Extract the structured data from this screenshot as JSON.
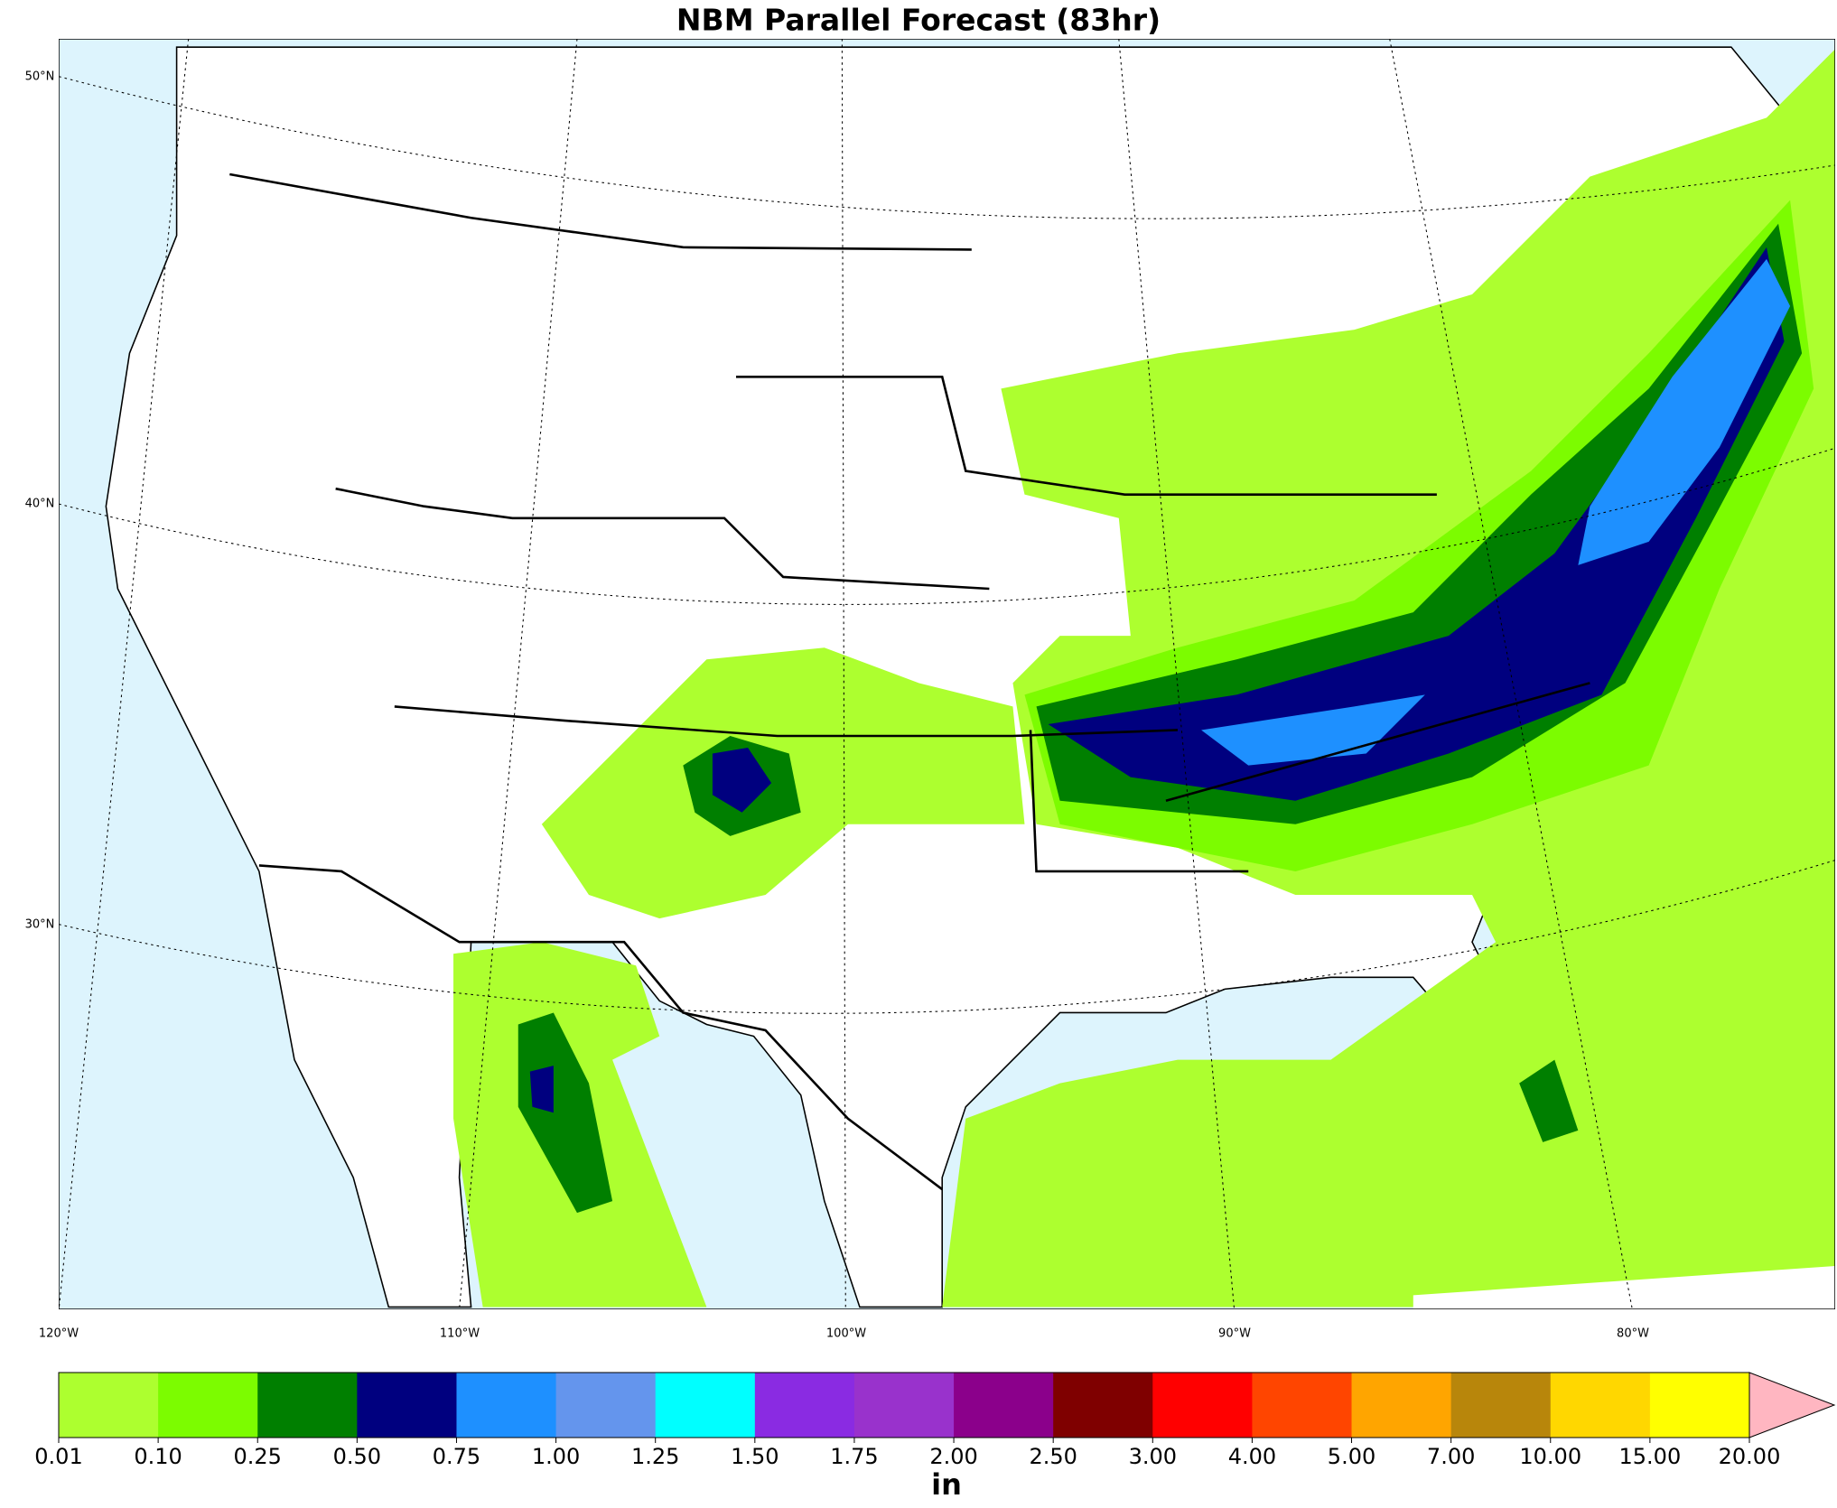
{
  "title": "NBM Parallel Forecast (83hr)",
  "map": {
    "lat_labels": [
      "50°N",
      "40°N",
      "30°N"
    ],
    "lon_labels": [
      "120°W",
      "110°W",
      "100°W",
      "90°W",
      "80°W"
    ]
  },
  "colorbar": {
    "unit": "in",
    "labels": [
      "0.01",
      "0.10",
      "0.25",
      "0.50",
      "0.75",
      "1.00",
      "1.25",
      "1.50",
      "1.75",
      "2.00",
      "2.50",
      "3.00",
      "4.00",
      "5.00",
      "7.00",
      "10.00",
      "15.00",
      "20.00"
    ],
    "colors": [
      "#adff2f",
      "#7cfc00",
      "#007f00",
      "#00007f",
      "#1e90ff",
      "#6495ed",
      "#00ffff",
      "#8a2be2",
      "#9932cc",
      "#8b008b",
      "#7f0000",
      "#ff0000",
      "#ff4500",
      "#ffa500",
      "#b8860b",
      "#ffd700",
      "#ffff00"
    ],
    "extend_color": "#ffb6c1"
  }
}
